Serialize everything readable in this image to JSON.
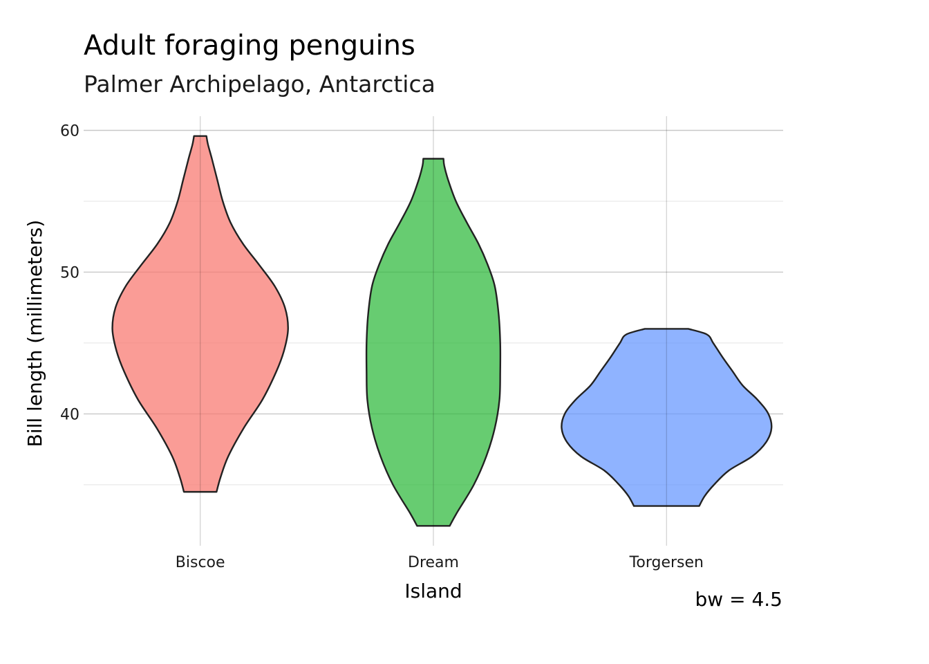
{
  "chart_data": {
    "type": "violin",
    "title": "Adult foraging penguins",
    "subtitle": "Palmer Archipelago, Antarctica",
    "xlabel": "Island",
    "ylabel": "Bill length (millimeters)",
    "caption": "bw = 4.5",
    "ylim": [
      30.7,
      61.0
    ],
    "yticks": [
      40,
      50,
      60
    ],
    "yticks_minor": [
      35,
      45,
      55
    ],
    "grid": true,
    "categories": [
      "Biscoe",
      "Dream",
      "Torgersen"
    ],
    "series": [
      {
        "category": "Biscoe",
        "color": "#F8766D",
        "min": 34.5,
        "max": 59.6,
        "profile": [
          [
            34.5,
            0.21
          ],
          [
            35.5,
            0.26
          ],
          [
            37.0,
            0.36
          ],
          [
            39.0,
            0.56
          ],
          [
            41.0,
            0.8
          ],
          [
            43.0,
            0.98
          ],
          [
            44.5,
            1.08
          ],
          [
            46.0,
            1.13
          ],
          [
            47.5,
            1.09
          ],
          [
            49.0,
            0.96
          ],
          [
            50.5,
            0.76
          ],
          [
            52.0,
            0.55
          ],
          [
            53.5,
            0.39
          ],
          [
            55.0,
            0.29
          ],
          [
            56.5,
            0.22
          ],
          [
            58.0,
            0.15
          ],
          [
            59.0,
            0.1
          ],
          [
            59.6,
            0.08
          ]
        ]
      },
      {
        "category": "Dream",
        "color": "#2DB83A",
        "min": 32.1,
        "max": 58.0,
        "profile": [
          [
            32.1,
            0.21
          ],
          [
            33.0,
            0.3
          ],
          [
            35.0,
            0.52
          ],
          [
            37.0,
            0.68
          ],
          [
            39.0,
            0.79
          ],
          [
            41.0,
            0.85
          ],
          [
            43.0,
            0.86
          ],
          [
            45.0,
            0.86
          ],
          [
            47.0,
            0.84
          ],
          [
            49.0,
            0.79
          ],
          [
            50.5,
            0.7
          ],
          [
            52.0,
            0.58
          ],
          [
            53.5,
            0.43
          ],
          [
            55.0,
            0.29
          ],
          [
            56.5,
            0.19
          ],
          [
            57.5,
            0.14
          ],
          [
            58.0,
            0.13
          ]
        ]
      },
      {
        "category": "Torgersen",
        "color": "#6495FF",
        "min": 33.5,
        "max": 46.0,
        "profile": [
          [
            33.5,
            0.42
          ],
          [
            34.2,
            0.49
          ],
          [
            35.0,
            0.61
          ],
          [
            36.0,
            0.8
          ],
          [
            37.0,
            1.1
          ],
          [
            38.0,
            1.28
          ],
          [
            39.0,
            1.35
          ],
          [
            40.0,
            1.31
          ],
          [
            41.0,
            1.17
          ],
          [
            42.0,
            0.98
          ],
          [
            43.0,
            0.85
          ],
          [
            44.0,
            0.72
          ],
          [
            45.0,
            0.6
          ],
          [
            45.6,
            0.52
          ],
          [
            46.0,
            0.28
          ]
        ]
      }
    ]
  }
}
